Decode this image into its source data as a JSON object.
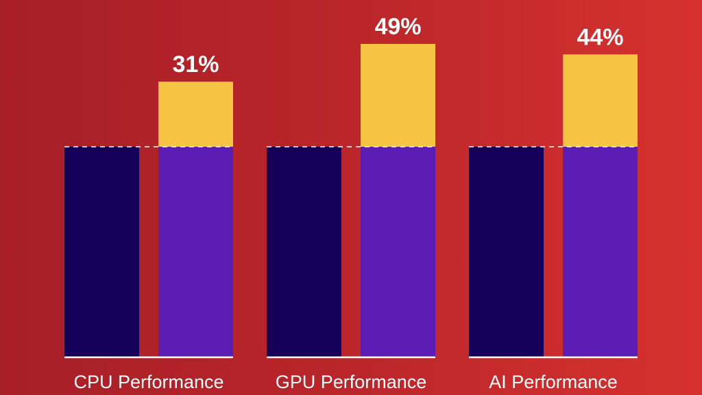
{
  "chart_data": {
    "type": "bar",
    "categories": [
      "CPU Performance",
      "GPU Performance",
      "AI Performance"
    ],
    "series": [
      {
        "values": [
          1.0,
          1.0,
          1.0
        ]
      },
      {
        "values": [
          1.31,
          1.49,
          1.44
        ]
      }
    ],
    "labels": [
      "31%",
      "49%",
      "44%"
    ],
    "ylim": [
      0,
      1.49
    ],
    "colors": {
      "baseline": "#15005a",
      "improved": "#5b1db3",
      "gain": "#f6c443",
      "text": "#ffffff"
    },
    "baseline_line": "dashed"
  }
}
